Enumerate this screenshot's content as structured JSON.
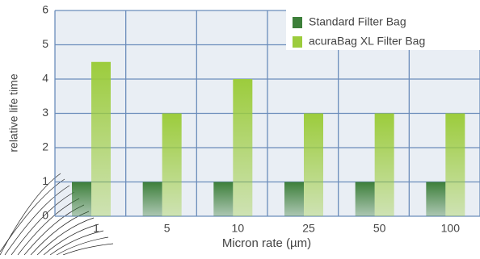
{
  "chart_data": {
    "type": "bar",
    "categories": [
      "1",
      "5",
      "10",
      "25",
      "50",
      "100"
    ],
    "series": [
      {
        "name": "Standard Filter Bag",
        "color": "#3d7f3a",
        "values": [
          1,
          1,
          1,
          1,
          1,
          1
        ]
      },
      {
        "name": "acuraBag XL Filter Bag",
        "color": "#9ccc3c",
        "values": [
          4.5,
          3,
          4,
          3,
          3,
          3
        ]
      }
    ],
    "x_label": "Micron rate (µm)",
    "y_label": "relative life time",
    "ylim": [
      0,
      6
    ],
    "yticks": [
      0,
      1,
      2,
      3,
      4,
      5,
      6
    ],
    "grid": true,
    "legend": "top-right"
  }
}
